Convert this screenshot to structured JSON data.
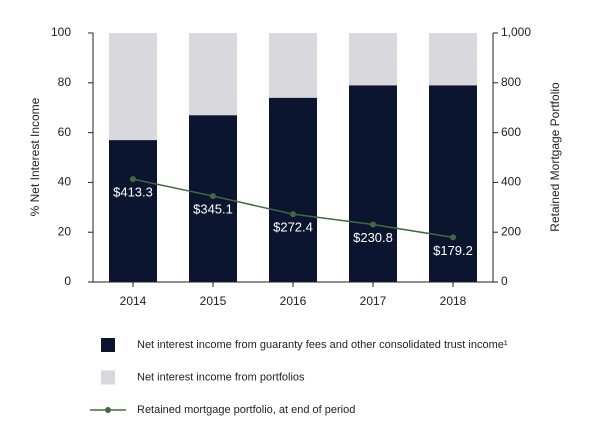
{
  "chart_data": {
    "type": "bar",
    "stacked": true,
    "categories": [
      "2014",
      "2015",
      "2016",
      "2017",
      "2018"
    ],
    "ylabel": "% Net Interest Income",
    "y2label": "Retained Mortgage Portfolio",
    "ylim": [
      0,
      100
    ],
    "yticks": [
      0,
      20,
      40,
      60,
      80,
      100
    ],
    "y2lim": [
      0,
      1000
    ],
    "y2ticks": [
      0,
      200,
      400,
      600,
      800,
      {
        "value": 1000,
        "label": "1,000"
      }
    ],
    "legend": "bottom",
    "series": [
      {
        "name": "Net interest income from guaranty fees and other consolidated trust income¹",
        "type": "bar",
        "color": "#0b1530",
        "values": [
          57,
          67,
          74,
          79,
          79
        ]
      },
      {
        "name": "Net interest income from portfolios",
        "type": "bar",
        "color": "#d9d8dc",
        "values": [
          43,
          33,
          26,
          21,
          21
        ]
      },
      {
        "name": "Retained mortgage portfolio, at end of period",
        "type": "line",
        "axis": "y2",
        "color": "#3f6b3f",
        "values": [
          413.3,
          345.1,
          272.4,
          230.8,
          179.2
        ],
        "value_labels": [
          "$413.3",
          "$345.1",
          "$272.4",
          "$230.8",
          "$179.2"
        ]
      }
    ]
  }
}
